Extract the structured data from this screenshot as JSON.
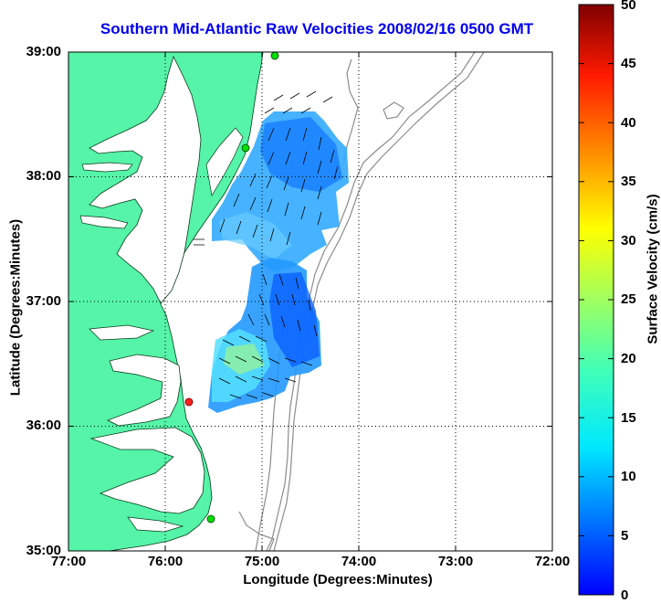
{
  "title": "Southern Mid-Atlantic Raw Velocities 2008/02/16 0500 GMT",
  "xlabel": "Longitude (Degrees:Minutes)",
  "ylabel": "Latitude (Degrees:Minutes)",
  "x_ticks": [
    "77:00",
    "76:00",
    "75:00",
    "74:00",
    "73:00",
    "72:00"
  ],
  "y_ticks": [
    "39:00",
    "38:00",
    "37:00",
    "36:00",
    "35:00"
  ],
  "colorbar": {
    "label": "Surface Velocity (cm/s)",
    "ticks": [
      "0",
      "5",
      "10",
      "15",
      "20",
      "25",
      "30",
      "35",
      "40",
      "45",
      "50"
    ],
    "min": 0,
    "max": 50
  },
  "colors": {
    "land": "#55f4a8",
    "sea": "#ffffff",
    "title": "#0000ee",
    "grid": "#000000",
    "bathymetry": "#8c8c8c"
  }
}
